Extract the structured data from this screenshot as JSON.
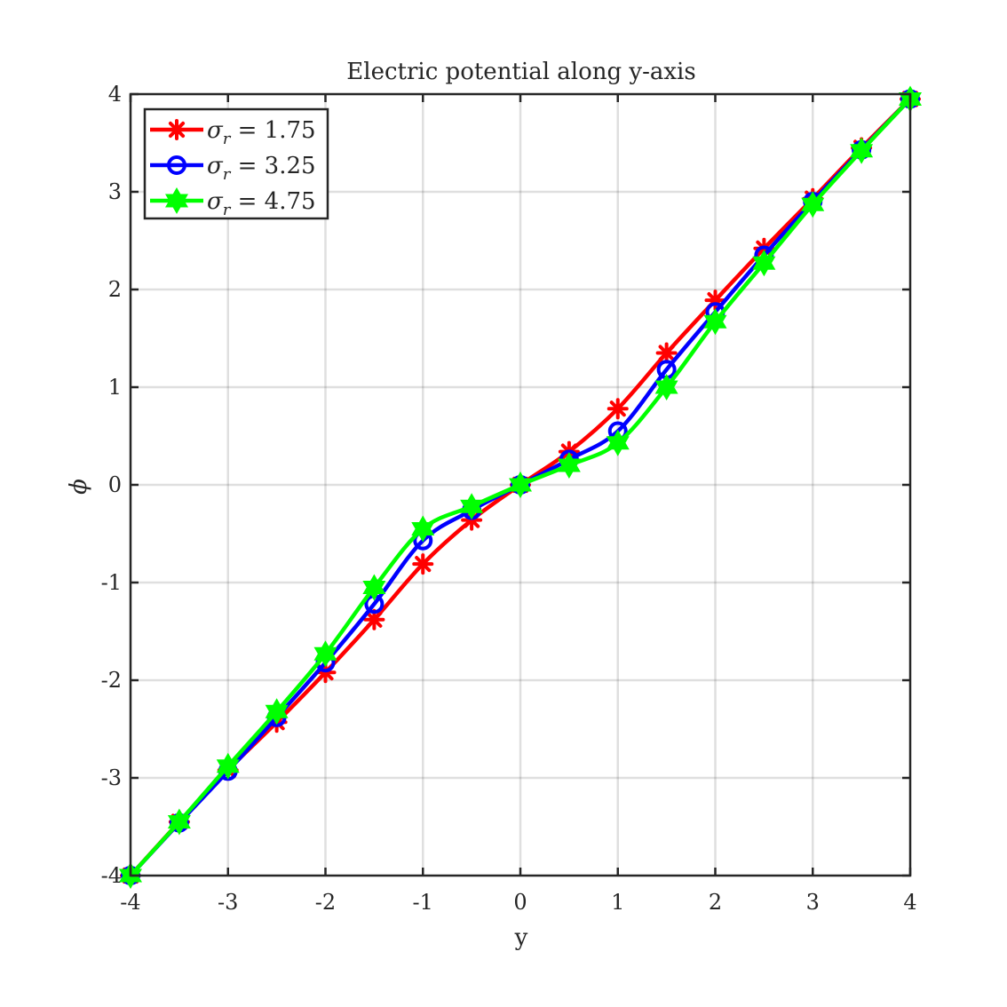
{
  "chart_data": {
    "type": "line",
    "title": "Electric potential along y-axis",
    "xlabel": "y",
    "ylabel": "ϕ",
    "xlim": [
      -4,
      4
    ],
    "ylim": [
      -4,
      4
    ],
    "xticks": [
      "-4",
      "-3",
      "-2",
      "-1",
      "0",
      "1",
      "2",
      "3",
      "4"
    ],
    "yticks": [
      "-4",
      "-3",
      "-2",
      "-1",
      "0",
      "1",
      "2",
      "3",
      "4"
    ],
    "grid": true,
    "legend_position": "top-left",
    "x": [
      -4,
      -3.5,
      -3,
      -2.5,
      -2,
      -1.5,
      -1,
      -0.5,
      0,
      0.5,
      1,
      1.5,
      2,
      2.5,
      3,
      3.5,
      4
    ],
    "series": [
      {
        "name": "σr = 1.75",
        "legend_main": "σ",
        "legend_sub": "r",
        "legend_value": " = 1.75",
        "color": "#ff0000",
        "marker": "asterisk",
        "values": [
          -4.0,
          -3.45,
          -2.92,
          -2.43,
          -1.92,
          -1.38,
          -0.81,
          -0.36,
          0.0,
          0.34,
          0.78,
          1.35,
          1.89,
          2.42,
          2.93,
          3.45,
          3.95
        ]
      },
      {
        "name": "σr = 3.25",
        "legend_main": "σ",
        "legend_sub": "r",
        "legend_value": " = 3.25",
        "color": "#0000ff",
        "marker": "circle",
        "values": [
          -4.0,
          -3.46,
          -2.93,
          -2.38,
          -1.82,
          -1.22,
          -0.57,
          -0.26,
          0.0,
          0.26,
          0.55,
          1.18,
          1.77,
          2.35,
          2.9,
          3.43,
          3.95
        ]
      },
      {
        "name": "σr = 4.75",
        "legend_main": "σ",
        "legend_sub": "r",
        "legend_value": " = 4.75",
        "color": "#00ff00",
        "marker": "hexagram",
        "values": [
          -4.0,
          -3.45,
          -2.88,
          -2.32,
          -1.73,
          -1.05,
          -0.45,
          -0.22,
          0.0,
          0.2,
          0.43,
          1.0,
          1.67,
          2.27,
          2.87,
          3.42,
          3.95
        ]
      }
    ]
  }
}
